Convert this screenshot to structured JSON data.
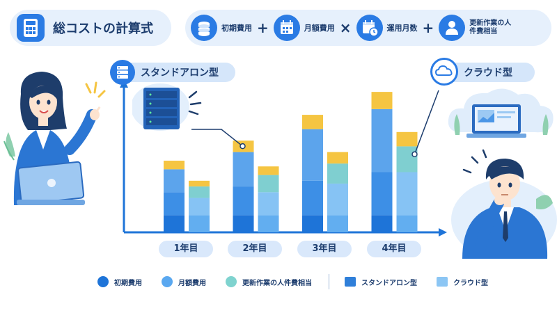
{
  "header": {
    "title": "総コストの計算式",
    "title_icon": "calculator-icon"
  },
  "formula": {
    "terms": [
      {
        "label": "初期費用",
        "icon": "coins-icon"
      },
      {
        "label": "月額費用",
        "icon": "calendar-icon"
      },
      {
        "label": "運用月数",
        "icon": "calendar-clock-icon"
      },
      {
        "label": "更新作業の人件費相当",
        "icon": "person-icon"
      }
    ],
    "operators": [
      "+",
      "×",
      "+"
    ]
  },
  "sections": {
    "standalone": "スタンドアロン型",
    "cloud": "クラウド型"
  },
  "legend": {
    "initial": "初期費用",
    "monthly": "月額費用",
    "labor": "更新作業の人件費相当",
    "standalone": "スタンドアロン型",
    "cloud": "クラウド型"
  },
  "colors": {
    "standalone": [
      "#1e74d8",
      "#3d8fe6",
      "#5ca4ec",
      "#f5c542"
    ],
    "cloud": [
      "#62aef0",
      "#86c3f4",
      "#7fcfd0",
      "#f5c542"
    ],
    "legend_initial": "#1e74d8",
    "legend_monthly": "#5aa8f0",
    "legend_labor": "#7fd3cf",
    "legend_standalone": "#2f7fd9",
    "legend_cloud": "#8cc6f4"
  },
  "chart_data": {
    "type": "bar",
    "stacked": true,
    "categories": [
      "1年目",
      "2年目",
      "3年目",
      "4年目"
    ],
    "series": [
      {
        "name": "スタンドアロン型",
        "segments": [
          [
            6,
            8,
            8,
            3
          ],
          [
            6,
            10,
            12,
            4
          ],
          [
            6,
            12,
            18,
            5
          ],
          [
            6,
            15,
            22,
            6
          ]
        ]
      },
      {
        "name": "クラウド型",
        "segments": [
          [
            6,
            6,
            4,
            2
          ],
          [
            6,
            8,
            6,
            3
          ],
          [
            6,
            11,
            7,
            4
          ],
          [
            6,
            15,
            9,
            5
          ]
        ]
      }
    ],
    "ylim": [
      0,
      50
    ],
    "xlabel": "",
    "ylabel": "",
    "grid": false
  }
}
